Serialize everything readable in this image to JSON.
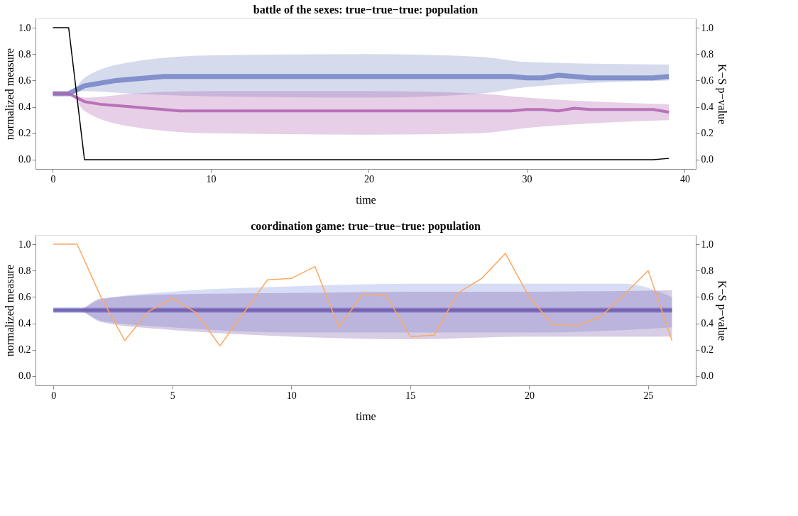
{
  "chart_data": [
    {
      "type": "line",
      "title": "battle of the sexes: true−true−true: population",
      "xlabel": "time",
      "ylabel": "normalized measure",
      "y2label": "K−S p−value",
      "x": [
        0,
        1,
        2,
        3,
        4,
        5,
        6,
        7,
        8,
        9,
        10,
        11,
        12,
        13,
        14,
        15,
        16,
        17,
        18,
        19,
        20,
        21,
        22,
        23,
        24,
        25,
        26,
        27,
        28,
        29,
        30,
        31,
        32,
        33,
        34,
        35,
        36,
        37,
        38,
        39
      ],
      "xlim": [
        -1.1,
        40.7
      ],
      "xticks": [
        0,
        10,
        20,
        30,
        40
      ],
      "ylim": [
        -0.07,
        1.07
      ],
      "yticks": [
        {
          "value": 0,
          "label": "0.0"
        },
        {
          "value": 0.2,
          "label": "0.2"
        },
        {
          "value": 0.4,
          "label": "0.4"
        },
        {
          "value": 0.6,
          "label": "0.6"
        },
        {
          "value": 0.8,
          "label": "0.8"
        },
        {
          "value": 1,
          "label": "1.0"
        }
      ],
      "y2lim": [
        -0.07,
        1.07
      ],
      "y2ticks": [
        {
          "value": 0,
          "label": "0.0"
        },
        {
          "value": 0.2,
          "label": "0.2"
        },
        {
          "value": 0.4,
          "label": "0.4"
        },
        {
          "value": 0.6,
          "label": "0.6"
        },
        {
          "value": 0.8,
          "label": "0.8"
        },
        {
          "value": 1,
          "label": "1.0"
        }
      ],
      "grid": false,
      "series": [
        {
          "color": "#7383c4",
          "values": [
            0.5,
            0.5,
            0.56,
            0.58,
            0.6,
            0.61,
            0.62,
            0.63,
            0.63,
            0.63,
            0.63,
            0.63,
            0.63,
            0.63,
            0.63,
            0.63,
            0.63,
            0.63,
            0.63,
            0.63,
            0.63,
            0.63,
            0.63,
            0.63,
            0.63,
            0.63,
            0.63,
            0.63,
            0.63,
            0.63,
            0.62,
            0.62,
            0.64,
            0.63,
            0.62,
            0.62,
            0.62,
            0.62,
            0.62,
            0.63
          ],
          "lower": [
            0.5,
            0.5,
            0.52,
            null,
            null,
            0.5,
            null,
            null,
            null,
            null,
            0.48,
            null,
            null,
            null,
            null,
            null,
            null,
            null,
            null,
            null,
            0.47,
            null,
            null,
            null,
            null,
            null,
            null,
            0.5,
            null,
            null,
            0.55,
            null,
            null,
            null,
            null,
            null,
            null,
            null,
            null,
            0.6
          ],
          "upper": [
            0.5,
            0.5,
            0.62,
            null,
            null,
            0.74,
            null,
            null,
            null,
            null,
            0.79,
            null,
            null,
            null,
            null,
            null,
            null,
            null,
            null,
            null,
            0.8,
            null,
            null,
            null,
            null,
            null,
            null,
            0.78,
            null,
            null,
            0.74,
            null,
            null,
            null,
            null,
            null,
            null,
            null,
            null,
            0.72
          ]
        },
        {
          "color": "#b060b0",
          "values": [
            0.5,
            0.5,
            0.44,
            0.42,
            0.41,
            0.4,
            0.39,
            0.38,
            0.37,
            0.37,
            0.37,
            0.37,
            0.37,
            0.37,
            0.37,
            0.37,
            0.37,
            0.37,
            0.37,
            0.37,
            0.37,
            0.37,
            0.37,
            0.37,
            0.37,
            0.37,
            0.37,
            0.37,
            0.37,
            0.37,
            0.38,
            0.38,
            0.37,
            0.39,
            0.38,
            0.38,
            0.38,
            0.38,
            0.38,
            0.36
          ],
          "lower": [
            0.5,
            0.5,
            0.37,
            null,
            null,
            0.25,
            null,
            null,
            null,
            null,
            0.2,
            null,
            null,
            null,
            null,
            null,
            null,
            null,
            null,
            null,
            0.19,
            null,
            null,
            null,
            null,
            null,
            null,
            0.2,
            null,
            null,
            0.24,
            null,
            null,
            null,
            null,
            null,
            null,
            null,
            null,
            0.3
          ],
          "upper": [
            0.5,
            0.5,
            0.47,
            null,
            null,
            0.5,
            null,
            null,
            null,
            null,
            0.52,
            null,
            null,
            null,
            null,
            null,
            null,
            null,
            null,
            null,
            0.52,
            null,
            null,
            null,
            null,
            null,
            null,
            0.5,
            null,
            null,
            0.47,
            null,
            null,
            null,
            null,
            null,
            null,
            null,
            null,
            0.42
          ]
        },
        {
          "color": "#000000",
          "axis": "y2",
          "values": [
            1,
            1,
            0,
            0,
            0,
            0,
            0,
            0,
            0,
            0,
            0,
            0,
            0,
            0,
            0,
            0,
            0,
            0,
            0,
            0,
            0,
            0,
            0,
            0,
            0,
            0,
            0,
            0,
            0,
            0,
            0,
            0,
            0,
            0,
            0,
            0,
            0,
            0,
            0,
            0.01
          ]
        }
      ]
    },
    {
      "type": "line",
      "title": "coordination game: true−true−true: population",
      "xlabel": "time",
      "ylabel": "normalized measure",
      "y2label": "K−S p−value",
      "x": [
        0,
        1,
        2,
        3,
        4,
        5,
        6,
        7,
        8,
        9,
        10,
        11,
        12,
        13,
        14,
        15,
        16,
        17,
        18,
        19,
        20,
        21,
        22,
        23,
        24,
        25,
        26
      ],
      "xlim": [
        -0.75,
        27.0
      ],
      "xticks": [
        0,
        5,
        10,
        15,
        20,
        25
      ],
      "ylim": [
        -0.07,
        1.07
      ],
      "yticks": [
        {
          "value": 0,
          "label": "0.0"
        },
        {
          "value": 0.2,
          "label": "0.2"
        },
        {
          "value": 0.4,
          "label": "0.4"
        },
        {
          "value": 0.6,
          "label": "0.6"
        },
        {
          "value": 0.8,
          "label": "0.8"
        },
        {
          "value": 1,
          "label": "1.0"
        }
      ],
      "y2lim": [
        -0.07,
        1.07
      ],
      "y2ticks": [
        {
          "value": 0,
          "label": "0.0"
        },
        {
          "value": 0.2,
          "label": "0.2"
        },
        {
          "value": 0.4,
          "label": "0.4"
        },
        {
          "value": 0.6,
          "label": "0.6"
        },
        {
          "value": 0.8,
          "label": "0.8"
        },
        {
          "value": 1,
          "label": "1.0"
        }
      ],
      "grid": false,
      "series": [
        {
          "color": "#7a8fdc",
          "values": [
            0.5,
            0.5,
            0.5,
            0.5,
            0.5,
            0.5,
            0.5,
            0.5,
            0.5,
            0.5,
            0.5,
            0.5,
            0.5,
            0.5,
            0.5,
            0.5,
            0.5,
            0.5,
            0.5,
            0.5,
            0.5,
            0.5,
            0.5,
            0.5,
            0.5,
            0.5,
            0.5
          ],
          "lower": [
            0.5,
            0.5,
            0.42,
            null,
            null,
            0.37,
            null,
            null,
            null,
            null,
            0.33,
            null,
            null,
            null,
            null,
            0.33,
            null,
            null,
            null,
            null,
            0.33,
            null,
            null,
            null,
            0.35,
            null,
            0.37
          ],
          "upper": [
            0.5,
            0.5,
            0.58,
            null,
            null,
            0.64,
            null,
            null,
            null,
            null,
            0.68,
            null,
            null,
            null,
            null,
            0.7,
            null,
            null,
            null,
            null,
            0.7,
            null,
            null,
            null,
            0.7,
            null,
            0.6
          ]
        },
        {
          "color": "#7a5aa8",
          "values": [
            0.5,
            0.5,
            0.5,
            0.5,
            0.5,
            0.5,
            0.5,
            0.5,
            0.5,
            0.5,
            0.5,
            0.5,
            0.5,
            0.5,
            0.5,
            0.5,
            0.5,
            0.5,
            0.5,
            0.5,
            0.5,
            0.5,
            0.5,
            0.5,
            0.5,
            0.5,
            0.5
          ],
          "lower": [
            0.5,
            0.5,
            0.41,
            null,
            null,
            0.35,
            null,
            null,
            null,
            null,
            0.3,
            null,
            null,
            null,
            null,
            0.28,
            null,
            null,
            null,
            null,
            0.3,
            null,
            null,
            null,
            null,
            null,
            0.3
          ],
          "upper": [
            0.5,
            0.5,
            0.59,
            null,
            null,
            0.62,
            null,
            null,
            null,
            null,
            0.63,
            null,
            null,
            null,
            null,
            0.64,
            null,
            null,
            null,
            null,
            0.64,
            null,
            null,
            null,
            null,
            null,
            0.65
          ]
        },
        {
          "color": "#ffa860",
          "axis": "y2",
          "values": [
            1,
            1,
            0.6,
            0.27,
            0.49,
            0.59,
            0.48,
            0.23,
            0.48,
            0.73,
            0.74,
            0.83,
            0.37,
            0.62,
            0.61,
            0.3,
            0.31,
            0.63,
            0.74,
            0.93,
            0.6,
            0.39,
            0.38,
            0.45,
            0.62,
            0.8,
            0.27
          ]
        }
      ]
    }
  ]
}
